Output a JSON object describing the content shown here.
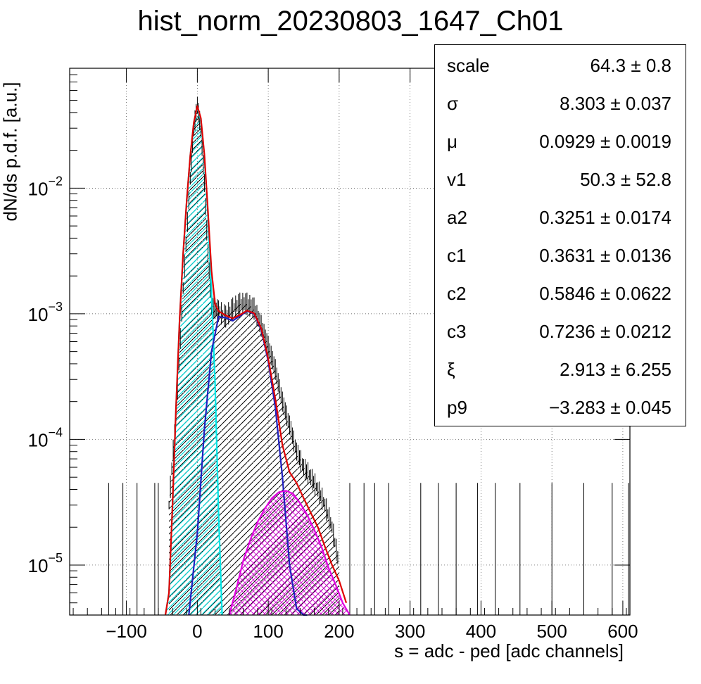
{
  "chart_data": {
    "type": "line",
    "title": "hist_norm_20230803_1647_Ch01",
    "xlabel": "s = adc - ped [adc channels]",
    "ylabel": "dN/ds p.d.f. [a.u.]",
    "x_ticks": [
      "−100",
      "0",
      "100",
      "200",
      "300",
      "400",
      "500",
      "600"
    ],
    "x_tick_values": [
      -100,
      0,
      100,
      200,
      300,
      400,
      500,
      600
    ],
    "y_ticks": [
      {
        "base": "10",
        "exp": "−2",
        "value": 0.01
      },
      {
        "base": "10",
        "exp": "−3",
        "value": 0.001
      },
      {
        "base": "10",
        "exp": "−4",
        "value": 0.0001
      },
      {
        "base": "10",
        "exp": "−5",
        "value": 1e-05
      }
    ],
    "xlim": [
      -180,
      610
    ],
    "ylim": [
      4e-06,
      0.09
    ],
    "log_y": true,
    "grid": true,
    "legend": "top-right",
    "series": [
      {
        "color": "#000000",
        "style": "histogram",
        "x": [
          -40,
          -30,
          -20,
          -10,
          -5,
          0,
          5,
          10,
          15,
          20,
          25,
          30,
          40,
          50,
          60,
          70,
          80,
          90,
          100,
          110,
          120,
          130,
          140,
          150,
          160,
          170,
          180,
          190,
          200
        ],
        "values": [
          3e-05,
          0.00016,
          0.0016,
          0.012,
          0.03,
          0.046,
          0.03,
          0.011,
          0.003,
          0.0012,
          0.0011,
          0.00105,
          0.00095,
          0.0011,
          0.0012,
          0.0012,
          0.0011,
          0.0008,
          0.00055,
          0.00036,
          0.0002,
          0.00013,
          8e-05,
          6e-05,
          5e-05,
          4e-05,
          3e-05,
          2e-05,
          1e-05
        ]
      },
      {
        "color": "#00e5e5",
        "style": "curve",
        "x": [
          -45,
          -40,
          -35,
          -30,
          -25,
          -20,
          -15,
          -10,
          -5,
          -2,
          0,
          5,
          10,
          15,
          20,
          25,
          30,
          35
        ],
        "values": [
          3e-06,
          6e-06,
          3e-05,
          0.00018,
          0.0009,
          0.003,
          0.008,
          0.018,
          0.033,
          0.04,
          0.044,
          0.035,
          0.018,
          0.006,
          0.0015,
          0.00028,
          2.5e-05,
          3e-06
        ]
      },
      {
        "color": "#2020c0",
        "style": "curve",
        "x": [
          -12,
          0,
          10,
          20,
          30,
          40,
          50,
          60,
          70,
          80,
          90,
          100,
          110,
          120,
          130,
          140,
          150,
          155
        ],
        "values": [
          3e-06,
          1.8e-05,
          0.00012,
          0.0005,
          0.00095,
          0.00093,
          0.00088,
          0.00096,
          0.00105,
          0.001,
          0.00075,
          0.00042,
          0.00018,
          5e-05,
          1e-05,
          4.5e-06,
          3e-06,
          3e-06
        ]
      },
      {
        "color": "#e000e0",
        "style": "curve",
        "x": [
          45,
          55,
          65,
          75,
          85,
          95,
          105,
          115,
          125,
          135,
          145,
          155,
          165,
          175,
          185,
          195,
          205,
          215
        ],
        "values": [
          4e-06,
          6.5e-06,
          1.1e-05,
          1.6e-05,
          2.2e-05,
          2.8e-05,
          3.4e-05,
          3.8e-05,
          3.9e-05,
          3.7e-05,
          3.1e-05,
          2.5e-05,
          1.9e-05,
          1.4e-05,
          9.5e-06,
          7e-06,
          5e-06,
          4e-06
        ]
      },
      {
        "color": "#e00000",
        "style": "curve",
        "x": [
          -45,
          -40,
          -35,
          -30,
          -25,
          -20,
          -15,
          -10,
          -5,
          -2,
          0,
          5,
          10,
          15,
          20,
          25,
          30,
          40,
          50,
          60,
          70,
          80,
          90,
          100,
          110,
          120,
          130,
          140,
          150,
          160,
          170,
          180,
          190,
          200,
          210
        ],
        "values": [
          3e-06,
          6e-06,
          3e-05,
          0.00018,
          0.0009,
          0.003,
          0.008,
          0.018,
          0.033,
          0.04,
          0.045,
          0.036,
          0.0185,
          0.0065,
          0.0022,
          0.0012,
          0.00105,
          0.00097,
          0.00092,
          0.00098,
          0.00106,
          0.00101,
          0.00077,
          0.00044,
          0.00021,
          9e-05,
          5.5e-05,
          4.5e-05,
          3.4e-05,
          2.6e-05,
          2e-05,
          1.4e-05,
          1e-05,
          7.5e-06,
          5e-06
        ]
      }
    ]
  },
  "stats": [
    {
      "name": "scale",
      "value": "64.3",
      "error": "0.8"
    },
    {
      "name": "σ",
      "value": "8.303",
      "error": "0.037"
    },
    {
      "name": "μ",
      "value": "0.0929",
      "error": "0.0019"
    },
    {
      "name": "v1",
      "value": "50.3",
      "error": "52.8"
    },
    {
      "name": "a2",
      "value": "0.3251",
      "error": "0.0174"
    },
    {
      "name": "c1",
      "value": "0.3631",
      "error": "0.0136"
    },
    {
      "name": "c2",
      "value": "0.5846",
      "error": "0.0622"
    },
    {
      "name": "c3",
      "value": "0.7236",
      "error": "0.0212"
    },
    {
      "name": "ξ",
      "value": "2.913",
      "error": "6.255"
    },
    {
      "name": "p9",
      "value": "−3.283",
      "error": "0.045"
    }
  ]
}
